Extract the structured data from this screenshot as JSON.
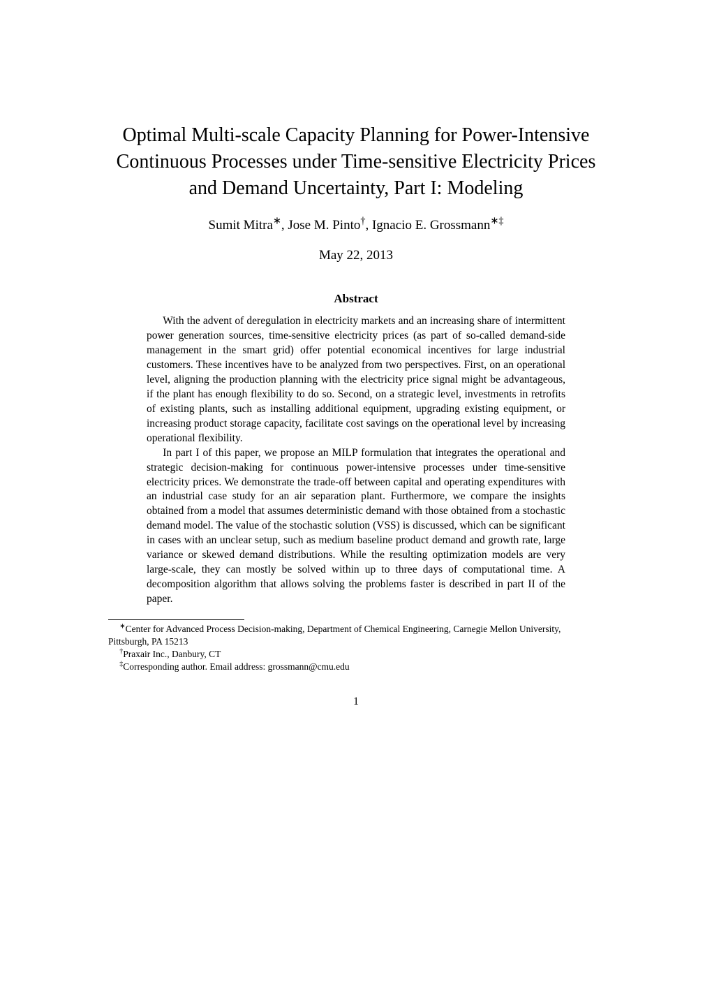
{
  "title": "Optimal Multi-scale Capacity Planning for Power-Intensive Continuous Processes under Time-sensitive Electricity Prices and Demand Uncertainty, Part I: Modeling",
  "authors_html": "Sumit Mitra<span class=\"sup\">∗</span>, Jose M. Pinto<span class=\"sup\">†</span>, Ignacio E. Grossmann<span class=\"sup\">∗‡</span>",
  "date": "May 22, 2013",
  "abstract_heading": "Abstract",
  "abstract_p1": "With the advent of deregulation in electricity markets and an increasing share of intermittent power generation sources, time-sensitive electricity prices (as part of so-called demand-side management in the smart grid) offer potential economical incentives for large industrial customers. These incentives have to be analyzed from two perspectives. First, on an operational level, aligning the production planning with the electricity price signal might be advantageous, if the plant has enough flexibility to do so. Second, on a strategic level, investments in retrofits of existing plants, such as installing additional equipment, upgrading existing equipment, or increasing product storage capacity, facilitate cost savings on the operational level by increasing operational flexibility.",
  "abstract_p2": "In part I of this paper, we propose an MILP formulation that integrates the operational and strategic decision-making for continuous power-intensive processes under time-sensitive electricity prices. We demonstrate the trade-off between capital and operating expenditures with an industrial case study for an air separation plant. Furthermore, we compare the insights obtained from a model that assumes deterministic demand with those obtained from a stochastic demand model. The value of the stochastic solution (VSS) is discussed, which can be significant in cases with an unclear setup, such as medium baseline product demand and growth rate, large variance or skewed demand distributions. While the resulting optimization models are very large-scale, they can mostly be solved within up to three days of computational time. A decomposition algorithm that allows solving the problems faster is described in part II of the paper.",
  "footnote1_html": "<span class=\"sup\">∗</span>Center for Advanced Process Decision-making, Department of Chemical Engineering, Carnegie Mellon University, Pittsburgh, PA 15213",
  "footnote2_html": "<span class=\"sup\">†</span>Praxair Inc., Danbury, CT",
  "footnote3_html": "<span class=\"sup\">‡</span>Corresponding author. Email address: grossmann@cmu.edu",
  "page_number": "1"
}
